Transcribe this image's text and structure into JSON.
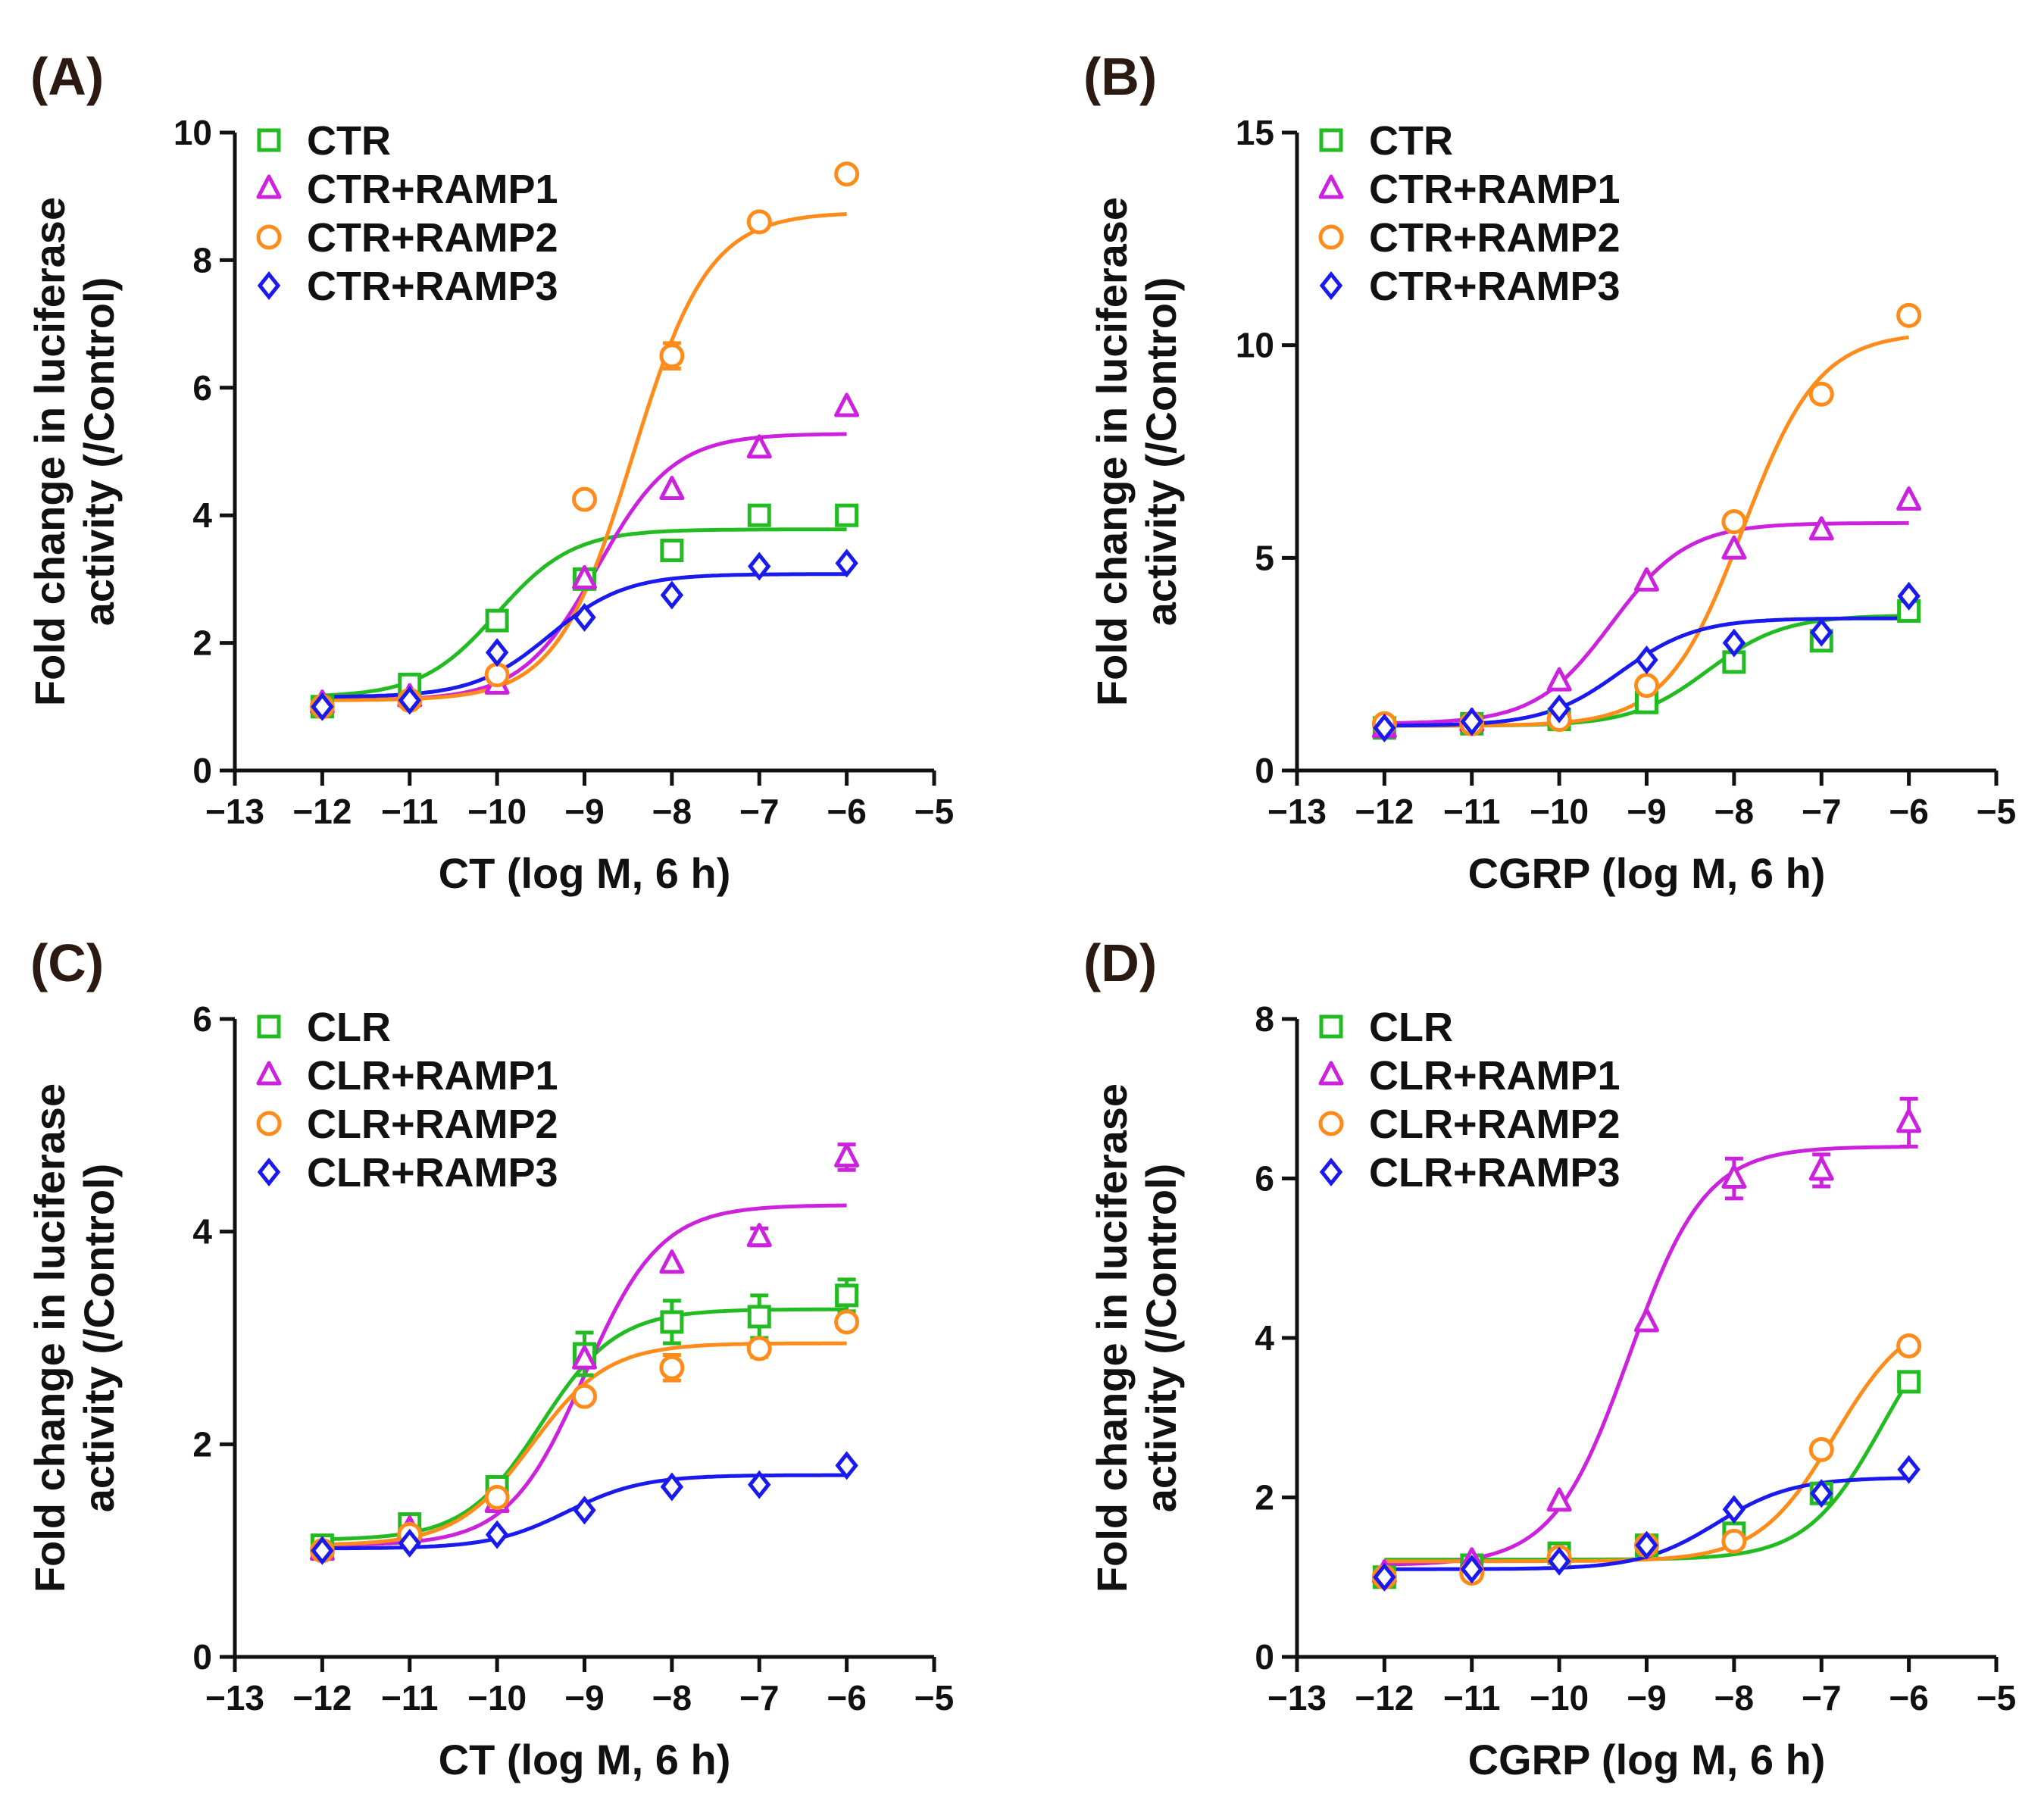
{
  "chart_data": [
    {
      "type": "scatter",
      "panel_label": "(A)",
      "xlabel": "CT (log M, 6 h)",
      "ylabel_line1": "Fold change in luciferase",
      "ylabel_line2": "activity (/Control)",
      "xlim": [
        -13,
        -5
      ],
      "ylim": [
        0,
        10
      ],
      "x_ticks": [
        -13,
        -12,
        -11,
        -10,
        -9,
        -8,
        -7,
        -6,
        -5
      ],
      "x_tick_labels": [
        "−13",
        "−12",
        "−11",
        "−10",
        "−9",
        "−8",
        "−7",
        "−6",
        "−5"
      ],
      "y_ticks": [
        0,
        2,
        4,
        6,
        8,
        10
      ],
      "y_tick_labels": [
        "0",
        "2",
        "4",
        "6",
        "8",
        "10"
      ],
      "legend_position": "top-left",
      "x": [
        -12,
        -11,
        -10,
        -9,
        -8,
        -7,
        -6
      ],
      "series": [
        {
          "name": "CTR",
          "marker": "square",
          "color": "#22bb22",
          "values": [
            1.0,
            1.35,
            2.35,
            3.0,
            3.45,
            4.0,
            4.0
          ],
          "errors": [
            0,
            0,
            0,
            0,
            0,
            0.12,
            0
          ],
          "fit": {
            "bottom": 1.15,
            "top": 3.78,
            "logEC50": -10.0,
            "hill": 1.0
          }
        },
        {
          "name": "CTR+RAMP1",
          "marker": "triangle",
          "color": "#cc22dd",
          "values": [
            1.05,
            1.15,
            1.35,
            3.0,
            4.4,
            5.05,
            5.7
          ],
          "errors": [
            0,
            0,
            0,
            0,
            0,
            0,
            0
          ],
          "fit": {
            "bottom": 1.1,
            "top": 5.28,
            "logEC50": -8.85,
            "hill": 1.0
          }
        },
        {
          "name": "CTR+RAMP2",
          "marker": "circle",
          "color": "#ff8c1a",
          "values": [
            1.0,
            1.1,
            1.5,
            4.25,
            6.5,
            8.6,
            9.35
          ],
          "errors": [
            0,
            0,
            0,
            0,
            0.2,
            0,
            0
          ],
          "fit": {
            "bottom": 1.1,
            "top": 8.75,
            "logEC50": -8.45,
            "hill": 1.0
          }
        },
        {
          "name": "CTR+RAMP3",
          "marker": "diamond",
          "color": "#1a1aee",
          "values": [
            1.0,
            1.1,
            1.85,
            2.4,
            2.75,
            3.2,
            3.25
          ],
          "errors": [
            0,
            0,
            0,
            0,
            0,
            0,
            0
          ],
          "fit": {
            "bottom": 1.15,
            "top": 3.08,
            "logEC50": -9.4,
            "hill": 1.0
          }
        }
      ]
    },
    {
      "type": "scatter",
      "panel_label": "(B)",
      "xlabel": "CGRP (log M, 6 h)",
      "ylabel_line1": "Fold change in luciferase",
      "ylabel_line2": "activity (/Control)",
      "xlim": [
        -13,
        -5
      ],
      "ylim": [
        0,
        15
      ],
      "x_ticks": [
        -13,
        -12,
        -11,
        -10,
        -9,
        -8,
        -7,
        -6,
        -5
      ],
      "x_tick_labels": [
        "−13",
        "−12",
        "−11",
        "−10",
        "−9",
        "−8",
        "−7",
        "−6",
        "−5"
      ],
      "y_ticks": [
        0,
        5,
        10,
        15
      ],
      "y_tick_labels": [
        "0",
        "5",
        "10",
        "15"
      ],
      "legend_position": "top-left",
      "x": [
        -12,
        -11,
        -10,
        -9,
        -8,
        -7,
        -6
      ],
      "series": [
        {
          "name": "CTR",
          "marker": "square",
          "color": "#22bb22",
          "values": [
            1.0,
            1.1,
            1.2,
            1.6,
            2.55,
            3.05,
            3.75
          ],
          "errors": [
            0,
            0,
            0,
            0,
            0,
            0,
            0
          ],
          "fit": {
            "bottom": 1.05,
            "top": 3.65,
            "logEC50": -8.3,
            "hill": 1.0
          }
        },
        {
          "name": "CTR+RAMP1",
          "marker": "triangle",
          "color": "#cc22dd",
          "values": [
            1.0,
            1.15,
            2.1,
            4.45,
            5.2,
            5.65,
            6.35
          ],
          "errors": [
            0,
            0,
            0,
            0,
            0,
            0,
            0
          ],
          "fit": {
            "bottom": 1.1,
            "top": 5.82,
            "logEC50": -9.4,
            "hill": 1.0
          }
        },
        {
          "name": "CTR+RAMP2",
          "marker": "circle",
          "color": "#ff8c1a",
          "values": [
            1.1,
            1.1,
            1.2,
            2.0,
            5.85,
            8.85,
            10.7
          ],
          "errors": [
            0,
            0,
            0,
            0,
            0,
            0,
            0
          ],
          "fit": {
            "bottom": 1.05,
            "top": 10.3,
            "logEC50": -7.9,
            "hill": 1.0
          }
        },
        {
          "name": "CTR+RAMP3",
          "marker": "diamond",
          "color": "#1a1aee",
          "values": [
            1.0,
            1.15,
            1.45,
            2.6,
            3.0,
            3.25,
            4.1
          ],
          "errors": [
            0,
            0,
            0,
            0,
            0,
            0,
            0
          ],
          "fit": {
            "bottom": 1.05,
            "top": 3.58,
            "logEC50": -9.3,
            "hill": 1.0
          }
        }
      ]
    },
    {
      "type": "scatter",
      "panel_label": "(C)",
      "xlabel": "CT (log M, 6 h)",
      "ylabel_line1": "Fold change in luciferase",
      "ylabel_line2": "activity (/Control)",
      "xlim": [
        -13,
        -5
      ],
      "ylim": [
        0,
        6
      ],
      "x_ticks": [
        -13,
        -12,
        -11,
        -10,
        -9,
        -8,
        -7,
        -6,
        -5
      ],
      "x_tick_labels": [
        "−13",
        "−12",
        "−11",
        "−10",
        "−9",
        "−8",
        "−7",
        "−6",
        "−5"
      ],
      "y_ticks": [
        0,
        2,
        4,
        6
      ],
      "y_tick_labels": [
        "0",
        "2",
        "4",
        "6"
      ],
      "legend_position": "top-left",
      "x": [
        -12,
        -11,
        -10,
        -9,
        -8,
        -7,
        -6
      ],
      "series": [
        {
          "name": "CLR",
          "marker": "square",
          "color": "#22bb22",
          "values": [
            1.05,
            1.25,
            1.6,
            2.85,
            3.15,
            3.2,
            3.4
          ],
          "errors": [
            0,
            0,
            0.08,
            0.2,
            0.2,
            0.2,
            0.15
          ],
          "fit": {
            "bottom": 1.1,
            "top": 3.27,
            "logEC50": -9.5,
            "hill": 1.0
          }
        },
        {
          "name": "CLR+RAMP1",
          "marker": "triangle",
          "color": "#cc22dd",
          "values": [
            1.0,
            1.2,
            1.45,
            2.8,
            3.7,
            3.95,
            4.7
          ],
          "errors": [
            0,
            0,
            0,
            0,
            0,
            0.08,
            0.12
          ],
          "fit": {
            "bottom": 1.05,
            "top": 4.25,
            "logEC50": -9.0,
            "hill": 1.0
          }
        },
        {
          "name": "CLR+RAMP2",
          "marker": "circle",
          "color": "#ff8c1a",
          "values": [
            1.0,
            1.15,
            1.5,
            2.45,
            2.72,
            2.9,
            3.15
          ],
          "errors": [
            0,
            0,
            0,
            0,
            0.12,
            0.08,
            0
          ],
          "fit": {
            "bottom": 1.05,
            "top": 2.95,
            "logEC50": -9.6,
            "hill": 1.0
          }
        },
        {
          "name": "CLR+RAMP3",
          "marker": "diamond",
          "color": "#1a1aee",
          "values": [
            1.0,
            1.07,
            1.15,
            1.38,
            1.6,
            1.62,
            1.8
          ],
          "errors": [
            0,
            0,
            0,
            0,
            0,
            0,
            0
          ],
          "fit": {
            "bottom": 1.02,
            "top": 1.71,
            "logEC50": -9.2,
            "hill": 1.0
          }
        }
      ]
    },
    {
      "type": "scatter",
      "panel_label": "(D)",
      "xlabel": "CGRP (log M, 6 h)",
      "ylabel_line1": "Fold change in luciferase",
      "ylabel_line2": "activity (/Control)",
      "xlim": [
        -13,
        -5
      ],
      "ylim": [
        0,
        8
      ],
      "x_ticks": [
        -13,
        -12,
        -11,
        -10,
        -9,
        -8,
        -7,
        -6,
        -5
      ],
      "x_tick_labels": [
        "−13",
        "−12",
        "−11",
        "−10",
        "−9",
        "−8",
        "−7",
        "−6",
        "−5"
      ],
      "y_ticks": [
        0,
        2,
        4,
        6,
        8
      ],
      "y_tick_labels": [
        "0",
        "2",
        "4",
        "6",
        "8"
      ],
      "legend_position": "top-left",
      "x": [
        -12,
        -11,
        -10,
        -9,
        -8,
        -7,
        -6
      ],
      "series": [
        {
          "name": "CLR",
          "marker": "square",
          "color": "#22bb22",
          "values": [
            1.0,
            1.15,
            1.3,
            1.4,
            1.55,
            2.05,
            3.45
          ],
          "errors": [
            0,
            0,
            0,
            0,
            0.12,
            0,
            0
          ],
          "fit": {
            "bottom": 1.22,
            "top": 4.6,
            "logEC50": -6.3,
            "hill": 1.0
          }
        },
        {
          "name": "CLR+RAMP1",
          "marker": "triangle",
          "color": "#cc22dd",
          "values": [
            1.05,
            1.2,
            1.95,
            4.2,
            6.0,
            6.1,
            6.7
          ],
          "errors": [
            0,
            0,
            0,
            0,
            0.25,
            0.2,
            0.3
          ],
          "fit": {
            "bottom": 1.15,
            "top": 6.4,
            "logEC50": -9.2,
            "hill": 1.0
          }
        },
        {
          "name": "CLR+RAMP2",
          "marker": "circle",
          "color": "#ff8c1a",
          "values": [
            1.0,
            1.05,
            1.25,
            1.4,
            1.45,
            2.6,
            3.9
          ],
          "errors": [
            0,
            0,
            0,
            0,
            0,
            0,
            0
          ],
          "fit": {
            "bottom": 1.2,
            "top": 4.35,
            "logEC50": -6.85,
            "hill": 1.0
          }
        },
        {
          "name": "CLR+RAMP3",
          "marker": "diamond",
          "color": "#1a1aee",
          "values": [
            1.0,
            1.1,
            1.2,
            1.4,
            1.85,
            2.05,
            2.35
          ],
          "errors": [
            0,
            0,
            0,
            0,
            0,
            0,
            0
          ],
          "fit": {
            "bottom": 1.1,
            "top": 2.25,
            "logEC50": -8.2,
            "hill": 1.0
          }
        }
      ]
    }
  ]
}
